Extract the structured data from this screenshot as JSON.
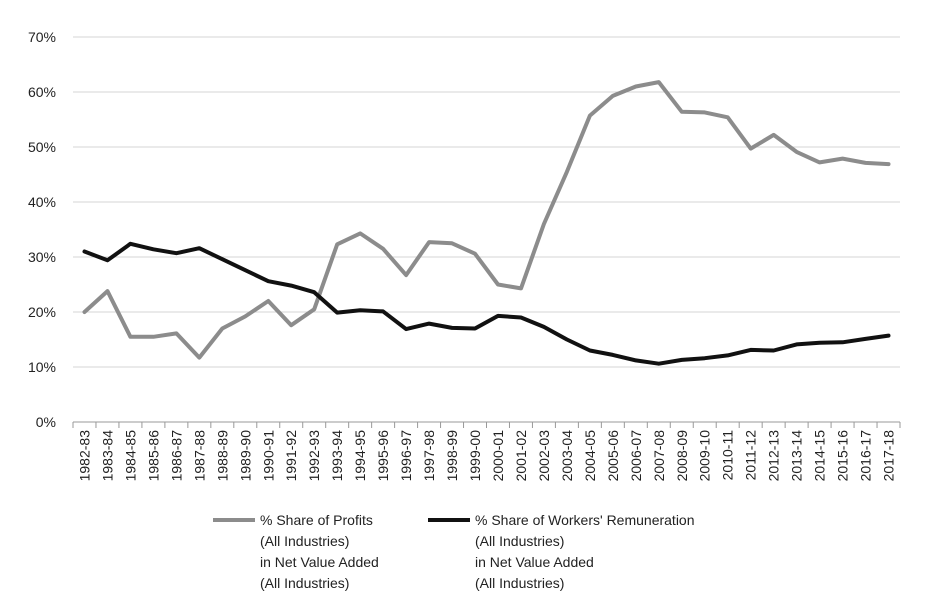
{
  "chart_data": {
    "type": "line",
    "title": "",
    "xlabel": "",
    "ylabel": "",
    "ylim": [
      0,
      70
    ],
    "y_ticks": [
      "0%",
      "10%",
      "20%",
      "30%",
      "40%",
      "50%",
      "60%",
      "70%"
    ],
    "grid": true,
    "legend_position": "bottom",
    "categories": [
      "1982-83",
      "1983-84",
      "1984-85",
      "1985-86",
      "1986-87",
      "1987-88",
      "1988-89",
      "1989-90",
      "1990-91",
      "1991-92",
      "1992-93",
      "1993-94",
      "1994-95",
      "1995-96",
      "1996-97",
      "1997-98",
      "1998-99",
      "1999-00",
      "2000-01",
      "2001-02",
      "2002-03",
      "2003-04",
      "2004-05",
      "2005-06",
      "2006-07",
      "2007-08",
      "2008-09",
      "2009-10",
      "2010-11",
      "2011-12",
      "2012-13",
      "2013-14",
      "2014-15",
      "2015-16",
      "2016-17",
      "2017-18"
    ],
    "series": [
      {
        "name_lines": [
          "% Share of Profits",
          "(All Industries)",
          "in Net Value Added",
          "(All Industries)"
        ],
        "color": "#8c8c8c",
        "values": [
          20.0,
          23.8,
          15.5,
          15.5,
          16.1,
          11.7,
          17.0,
          19.2,
          22.0,
          17.6,
          20.5,
          32.3,
          34.3,
          31.5,
          26.7,
          32.7,
          32.5,
          30.6,
          25.0,
          24.3,
          36.0,
          45.5,
          55.7,
          59.3,
          61.0,
          61.8,
          56.4,
          56.3,
          55.4,
          49.7,
          52.2,
          49.1,
          47.2,
          47.9,
          47.1,
          46.9
        ]
      },
      {
        "name_lines": [
          "% Share of Workers' Remuneration",
          "(All Industries)",
          "in Net Value Added",
          "(All Industries)"
        ],
        "color": "#111111",
        "values": [
          31.0,
          29.4,
          32.4,
          31.4,
          30.7,
          31.6,
          29.6,
          27.6,
          25.6,
          24.8,
          23.6,
          19.9,
          20.3,
          20.1,
          16.9,
          17.9,
          17.1,
          17.0,
          19.3,
          19.0,
          17.3,
          15.0,
          13.0,
          12.2,
          11.2,
          10.6,
          11.3,
          11.6,
          12.1,
          13.1,
          13.0,
          14.1,
          14.4,
          14.5,
          15.1,
          15.7
        ]
      }
    ]
  }
}
